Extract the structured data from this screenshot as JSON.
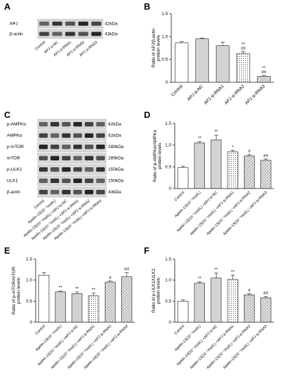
{
  "panels": {
    "A": {
      "label": "A",
      "bands": [
        {
          "name": "APJ",
          "kda": "42kDa"
        },
        {
          "name": "β-actin",
          "kda": "43kDa"
        }
      ],
      "lanes": [
        "Control",
        "APJ si-NC",
        "APJ si-RNA1",
        "APJ si-RNA2",
        "APJ si-RNA3"
      ]
    },
    "C": {
      "label": "C",
      "bands": [
        {
          "name": "p-AMPKα",
          "kda": "62kDa"
        },
        {
          "name": "AMPKα",
          "kda": "62kDa"
        },
        {
          "name": "p-mTOR",
          "kda": "289kDa"
        },
        {
          "name": "mTOR",
          "kda": "289kDa"
        },
        {
          "name": "p-ULK1",
          "kda": "150kDa"
        },
        {
          "name": "ULK1",
          "kda": "150kDa"
        },
        {
          "name": "β-actin",
          "kda": "43kDa"
        }
      ],
      "lanes": [
        "Control",
        "Apelin-13(10⁻⁷mol/L)",
        "Apelin-13(10⁻⁷mol/L) +APJ si-NC",
        "Apelin-13(10⁻⁷mol/L) +APJ si-RNA1",
        "Apelin-13(10⁻⁷mol/L) +APJ si-RNA2",
        "Apelin-13(10⁻⁷mol/L) +APJ si-RNA3"
      ]
    }
  },
  "chart_data": [
    {
      "panel": "B",
      "type": "bar",
      "categories": [
        "Control",
        "APJ si-NC",
        "APJ si-RNA1",
        "APJ si-RNA2",
        "APJ si-RNA3"
      ],
      "values": [
        0.86,
        0.95,
        0.8,
        0.63,
        0.13
      ],
      "errors": [
        0.03,
        0.02,
        0.08,
        0.04,
        0.02
      ],
      "annotations": [
        "",
        "",
        "",
        "**\n##",
        "**\n##"
      ],
      "patterns": [
        "white",
        "gray",
        "gray",
        "dots",
        "hatch"
      ],
      "ylabel": "Ratio of APJ/β-actin protein levels",
      "ylim": [
        0,
        1.5
      ],
      "yticks": [
        0,
        0.5,
        1.0,
        1.5
      ]
    },
    {
      "panel": "D",
      "type": "bar",
      "categories": [
        "Control",
        "Apelin-13(10⁻⁷mol/L)",
        "Apelin-13(10⁻⁷mol/L) +APJ si-NC",
        "Apelin-13(10⁻⁷mol/L) +APJ si-RNA1",
        "Apelin-13(10⁻⁷mol/L) +APJ si-RNA2",
        "Apelin-13(10⁻⁷mol/L) +APJ si-RNA3"
      ],
      "values": [
        0.48,
        1.05,
        1.12,
        0.85,
        0.75,
        0.65
      ],
      "errors": [
        0.03,
        0.03,
        0.11,
        0.03,
        0.03,
        0.03
      ],
      "annotations": [
        "",
        "**",
        "**",
        "*",
        "#",
        "##"
      ],
      "patterns": [
        "white",
        "gray",
        "gray",
        "dots",
        "hatch",
        "hatch"
      ],
      "ylabel": "Ratio of p-AMPKα/AMPKα protein levels",
      "ylim": [
        0,
        1.5
      ],
      "yticks": [
        0,
        0.5,
        1.0,
        1.5
      ]
    },
    {
      "panel": "E",
      "type": "bar",
      "categories": [
        "Control",
        "Apelin-13(10⁻⁷mol/L)",
        "Apelin-13(10⁻⁷mol/L) +APJ si-NC",
        "Apelin-13(10⁻⁷mol/L) +APJ si-RNA1",
        "Apelin-13(10⁻⁷mol/L) +APJ si-RNA2",
        "Apelin-13(10⁻⁷mol/L) +APJ si-RNA3"
      ],
      "values": [
        1.12,
        0.72,
        0.68,
        0.63,
        0.95,
        1.08
      ],
      "errors": [
        0.06,
        0.02,
        0.04,
        0.06,
        0.03,
        0.1
      ],
      "annotations": [
        "",
        "**",
        "**",
        "**",
        "#",
        "##"
      ],
      "patterns": [
        "white",
        "gray",
        "gray",
        "dots",
        "hatch",
        "hatch"
      ],
      "ylabel": "Ratio of p-mTOR/mTOR protein levels",
      "ylim": [
        0,
        1.5
      ],
      "yticks": [
        0,
        0.5,
        1.0,
        1.5
      ]
    },
    {
      "panel": "F",
      "type": "bar",
      "categories": [
        "Control",
        "Apelin-13(10⁻⁷mol/L)",
        "Apelin-13(10⁻⁷mol/L) +APJ si-NC",
        "Apelin-13(10⁻⁷mol/L) +APJ si-RNA1",
        "Apelin-13(10⁻⁷mol/L) +APJ si-RNA2",
        "Apelin-13(10⁻⁷mol/L) +APJ si-RNA3"
      ],
      "values": [
        0.5,
        0.93,
        1.05,
        1.02,
        0.65,
        0.58
      ],
      "errors": [
        0.03,
        0.03,
        0.12,
        0.1,
        0.03,
        0.03
      ],
      "annotations": [
        "",
        "**",
        "**",
        "**",
        "#",
        "##"
      ],
      "patterns": [
        "white",
        "gray",
        "gray",
        "dots",
        "hatch",
        "hatch"
      ],
      "ylabel": "Ratio of p-ULK1/ULK1 protein levels",
      "ylim": [
        0,
        1.5
      ],
      "yticks": [
        0,
        0.5,
        1.0,
        1.5
      ]
    }
  ]
}
